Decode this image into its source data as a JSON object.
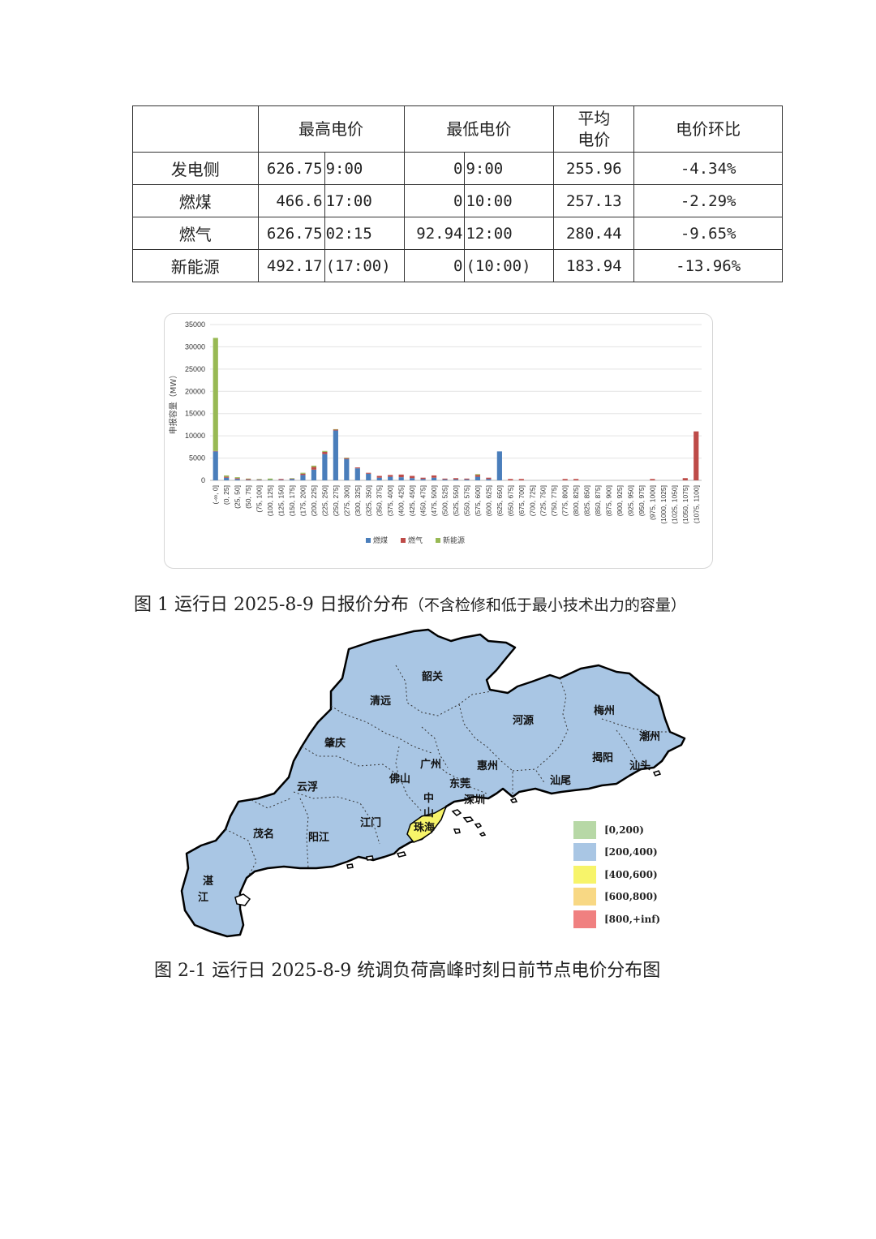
{
  "table": {
    "headers": [
      "",
      "最高电价",
      "最低电价",
      "平均",
      "电价",
      "电价环比"
    ],
    "rows": [
      {
        "name": "发电侧",
        "max_price": "626.75",
        "max_time": "9:00",
        "min_price": "0",
        "min_time": "9:00",
        "avg": "255.96",
        "ratio": "-4.34%"
      },
      {
        "name": "燃煤",
        "max_price": "466.6",
        "max_time": "17:00",
        "min_price": "0",
        "min_time": "10:00",
        "avg": "257.13",
        "ratio": "-2.29%"
      },
      {
        "name": "燃气",
        "max_price": "626.75",
        "max_time": "02:15",
        "min_price": "92.94",
        "min_time": "12:00",
        "avg": "280.44",
        "ratio": "-9.65%"
      },
      {
        "name": "新能源",
        "max_price": "492.17",
        "max_time": "(17:00)",
        "min_price": "0",
        "min_time": "(10:00)",
        "avg": "183.94",
        "ratio": "-13.96%"
      }
    ]
  },
  "chart_data": {
    "type": "bar",
    "stacked": true,
    "ylabel": "申报容量（MW）",
    "ylim": [
      0,
      35000
    ],
    "yticks": [
      0,
      5000,
      10000,
      15000,
      20000,
      25000,
      30000,
      35000
    ],
    "grid": true,
    "legend_position": "bottom",
    "categories": [
      "(-∞, 0]",
      "(0, 25]",
      "(25, 50]",
      "(50, 75]",
      "(75, 100]",
      "(100, 125]",
      "(125, 150]",
      "(150, 175]",
      "(175, 200]",
      "(200, 225]",
      "(225, 250]",
      "(250, 275]",
      "(275, 300]",
      "(300, 325]",
      "(325, 350]",
      "(350, 375]",
      "(375, 400]",
      "(400, 425]",
      "(425, 450]",
      "(450, 475]",
      "(475, 500]",
      "(500, 525]",
      "(525, 550]",
      "(550, 575]",
      "(575, 600]",
      "(600, 625]",
      "(625, 650]",
      "(650, 675]",
      "(675, 700]",
      "(700, 725]",
      "(725, 750]",
      "(750, 775]",
      "(775, 800]",
      "(800, 825]",
      "(825, 850]",
      "(850, 875]",
      "(875, 900]",
      "(900, 925]",
      "(925, 950]",
      "(950, 975]",
      "(975, 1000]",
      "(1000, 1025]",
      "(1025, 1050]",
      "(1050, 1075]",
      "(1075, 1100]"
    ],
    "series": [
      {
        "name": "燃煤",
        "color": "#4a7ebb",
        "values": [
          6500,
          600,
          300,
          100,
          100,
          100,
          100,
          300,
          1200,
          2400,
          5900,
          11200,
          4800,
          2700,
          1500,
          600,
          800,
          700,
          500,
          300,
          600,
          200,
          200,
          200,
          800,
          300,
          6500,
          0,
          0,
          0,
          0,
          0,
          0,
          0,
          0,
          0,
          0,
          0,
          0,
          0,
          0,
          0,
          0,
          0,
          0
        ]
      },
      {
        "name": "燃气",
        "color": "#be4b48",
        "values": [
          100,
          200,
          200,
          200,
          100,
          0,
          200,
          100,
          300,
          600,
          500,
          200,
          200,
          200,
          200,
          400,
          400,
          600,
          500,
          300,
          500,
          200,
          300,
          200,
          400,
          300,
          0,
          300,
          300,
          0,
          0,
          0,
          300,
          300,
          0,
          0,
          0,
          0,
          0,
          0,
          300,
          0,
          0,
          500,
          11000
        ]
      },
      {
        "name": "新能源",
        "color": "#98b954",
        "values": [
          25400,
          300,
          200,
          100,
          100,
          300,
          0,
          100,
          200,
          300,
          200,
          100,
          100,
          0,
          0,
          0,
          0,
          0,
          0,
          0,
          0,
          0,
          0,
          0,
          200,
          0,
          0,
          0,
          0,
          0,
          0,
          0,
          0,
          0,
          0,
          0,
          0,
          0,
          0,
          0,
          0,
          0,
          0,
          0,
          0
        ]
      }
    ]
  },
  "captions": {
    "fig1_main": "图 1 运行日 2025-8-9 日报价分布",
    "fig1_note": "（不含检修和低于最小技术出力的容量）",
    "fig2": "图 2-1 运行日 2025-8-9 统调负荷高峰时刻日前节点电价分布图"
  },
  "map": {
    "labels": [
      "韶关",
      "清远",
      "河源",
      "梅州",
      "潮州",
      "肇庆",
      "广州",
      "惠州",
      "揭阳",
      "汕头",
      "佛山",
      "东莞",
      "云浮",
      "汕尾",
      "中",
      "山",
      "深圳",
      "珠海",
      "茂名",
      "阳江",
      "江门",
      "湛",
      "江"
    ],
    "colors": {
      "default": "#a9c6e4",
      "highlight": "#f7f46a"
    },
    "legend": [
      {
        "label": "[0,200)",
        "color": "#b7d8a6"
      },
      {
        "label": "[200,400)",
        "color": "#a9c6e4"
      },
      {
        "label": "[400,600)",
        "color": "#f7f46a"
      },
      {
        "label": "[600,800)",
        "color": "#f8d884"
      },
      {
        "label": "[800,+inf)",
        "color": "#f08080"
      }
    ]
  }
}
